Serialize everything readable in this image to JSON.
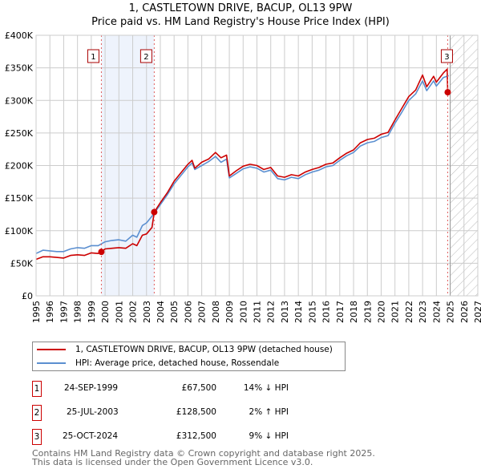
{
  "title": "1, CASTLETOWN DRIVE, BACUP, OL13 9PW",
  "subtitle": "Price paid vs. HM Land Registry's House Price Index (HPI)",
  "chart_data": {
    "type": "line",
    "title": "1, CASTLETOWN DRIVE, BACUP, OL13 9PW",
    "subtitle": "Price paid vs. HM Land Registry's House Price Index (HPI)",
    "xlim": [
      1995,
      2027
    ],
    "ylim": [
      0,
      400000
    ],
    "grid": true,
    "x_ticks": [
      "1995",
      "1996",
      "1997",
      "1998",
      "1999",
      "2000",
      "2001",
      "2002",
      "2003",
      "2004",
      "2005",
      "2006",
      "2007",
      "2008",
      "2009",
      "2010",
      "2011",
      "2012",
      "2013",
      "2014",
      "2015",
      "2016",
      "2017",
      "2018",
      "2019",
      "2020",
      "2021",
      "2022",
      "2023",
      "2024",
      "2025",
      "2026",
      "2027"
    ],
    "y_ticks": [
      {
        "v": 0,
        "label": "£0"
      },
      {
        "v": 50000,
        "label": "£50K"
      },
      {
        "v": 100000,
        "label": "£100K"
      },
      {
        "v": 150000,
        "label": "£150K"
      },
      {
        "v": 200000,
        "label": "£200K"
      },
      {
        "v": 250000,
        "label": "£250K"
      },
      {
        "v": 300000,
        "label": "£300K"
      },
      {
        "v": 350000,
        "label": "£350K"
      },
      {
        "v": 400000,
        "label": "£400K"
      }
    ],
    "shaded_span": [
      1999.73,
      2003.56
    ],
    "forecast_hatch_from": 2025.0,
    "series": [
      {
        "name": "1, CASTLETOWN DRIVE, BACUP, OL13 9PW (detached house)",
        "color": "#cc0000",
        "x": [
          1995,
          1995.5,
          1996,
          1996.5,
          1997,
          1997.5,
          1998,
          1998.5,
          1999,
          1999.5,
          1999.73,
          2000,
          2000.5,
          2001,
          2001.5,
          2002,
          2002.3,
          2002.7,
          2003,
          2003.4,
          2003.56,
          2004,
          2004.5,
          2005,
          2005.5,
          2006,
          2006.3,
          2006.5,
          2007,
          2007.5,
          2008,
          2008.4,
          2008.8,
          2009,
          2009.5,
          2010,
          2010.5,
          2011,
          2011.5,
          2012,
          2012.5,
          2013,
          2013.5,
          2014,
          2014.5,
          2015,
          2015.5,
          2016,
          2016.5,
          2017,
          2017.5,
          2018,
          2018.5,
          2019,
          2019.5,
          2020,
          2020.5,
          2021,
          2021.5,
          2022,
          2022.5,
          2023,
          2023.3,
          2023.8,
          2024,
          2024.5,
          2024.78,
          2024.82
        ],
        "y": [
          56000,
          60000,
          60000,
          59000,
          58000,
          62000,
          63000,
          62000,
          66000,
          65000,
          67500,
          72000,
          73000,
          74000,
          73000,
          80000,
          77000,
          93000,
          95000,
          105000,
          128500,
          143000,
          158000,
          176000,
          189000,
          202000,
          208000,
          196000,
          205000,
          210000,
          220000,
          212000,
          216000,
          184000,
          192000,
          199000,
          202000,
          200000,
          194000,
          197000,
          184000,
          182000,
          186000,
          184000,
          190000,
          194000,
          197000,
          202000,
          204000,
          212000,
          219000,
          224000,
          235000,
          240000,
          242000,
          248000,
          251000,
          270000,
          288000,
          306000,
          316000,
          339000,
          321000,
          337000,
          328000,
          342000,
          348000,
          312500
        ]
      },
      {
        "name": "HPI: Average price, detached house, Rossendale",
        "color": "#5b8fd0",
        "x": [
          1995,
          1995.5,
          1996,
          1996.5,
          1997,
          1997.5,
          1998,
          1998.5,
          1999,
          1999.5,
          2000,
          2000.5,
          2001,
          2001.5,
          2002,
          2002.3,
          2002.7,
          2003,
          2003.5,
          2004,
          2004.5,
          2005,
          2005.5,
          2006,
          2006.3,
          2006.5,
          2007,
          2007.5,
          2008,
          2008.4,
          2008.8,
          2009,
          2009.5,
          2010,
          2010.5,
          2011,
          2011.5,
          2012,
          2012.5,
          2013,
          2013.5,
          2014,
          2014.5,
          2015,
          2015.5,
          2016,
          2016.5,
          2017,
          2017.5,
          2018,
          2018.5,
          2019,
          2019.5,
          2020,
          2020.5,
          2021,
          2021.5,
          2022,
          2022.5,
          2023,
          2023.3,
          2023.8,
          2024,
          2024.5,
          2024.9
        ],
        "y": [
          65000,
          70000,
          69000,
          68000,
          68000,
          72000,
          74000,
          73000,
          77000,
          77000,
          83000,
          85000,
          86000,
          84000,
          93000,
          90000,
          108000,
          112000,
          125000,
          140000,
          155000,
          172000,
          185000,
          198000,
          204000,
          194000,
          200000,
          206000,
          214000,
          205000,
          210000,
          181000,
          188000,
          195000,
          198000,
          196000,
          190000,
          193000,
          180000,
          178000,
          182000,
          180000,
          186000,
          190000,
          193000,
          198000,
          200000,
          208000,
          215000,
          220000,
          230000,
          235000,
          237000,
          243000,
          246000,
          265000,
          282000,
          300000,
          310000,
          330000,
          315000,
          330000,
          322000,
          335000,
          338000
        ]
      }
    ],
    "transactions": [
      {
        "id": "1",
        "date": "24-SEP-1999",
        "x": 1999.73,
        "price": 67500,
        "price_label": "£67,500",
        "hpi_diff": "14% ↓ HPI"
      },
      {
        "id": "2",
        "date": "25-JUL-2003",
        "x": 2003.56,
        "price": 128500,
        "price_label": "£128,500",
        "hpi_diff": "2% ↑ HPI"
      },
      {
        "id": "3",
        "date": "25-OCT-2024",
        "x": 2024.82,
        "price": 312500,
        "price_label": "£312,500",
        "hpi_diff": "9% ↓ HPI"
      }
    ]
  },
  "legend": {
    "property": "1, CASTLETOWN DRIVE, BACUP, OL13 9PW (detached house)",
    "hpi": "HPI: Average price, detached house, Rossendale",
    "property_color": "#cc0000",
    "hpi_color": "#5b8fd0"
  },
  "footer": {
    "line1": "Contains HM Land Registry data © Crown copyright and database right 2025.",
    "line2": "This data is licensed under the Open Government Licence v3.0."
  }
}
